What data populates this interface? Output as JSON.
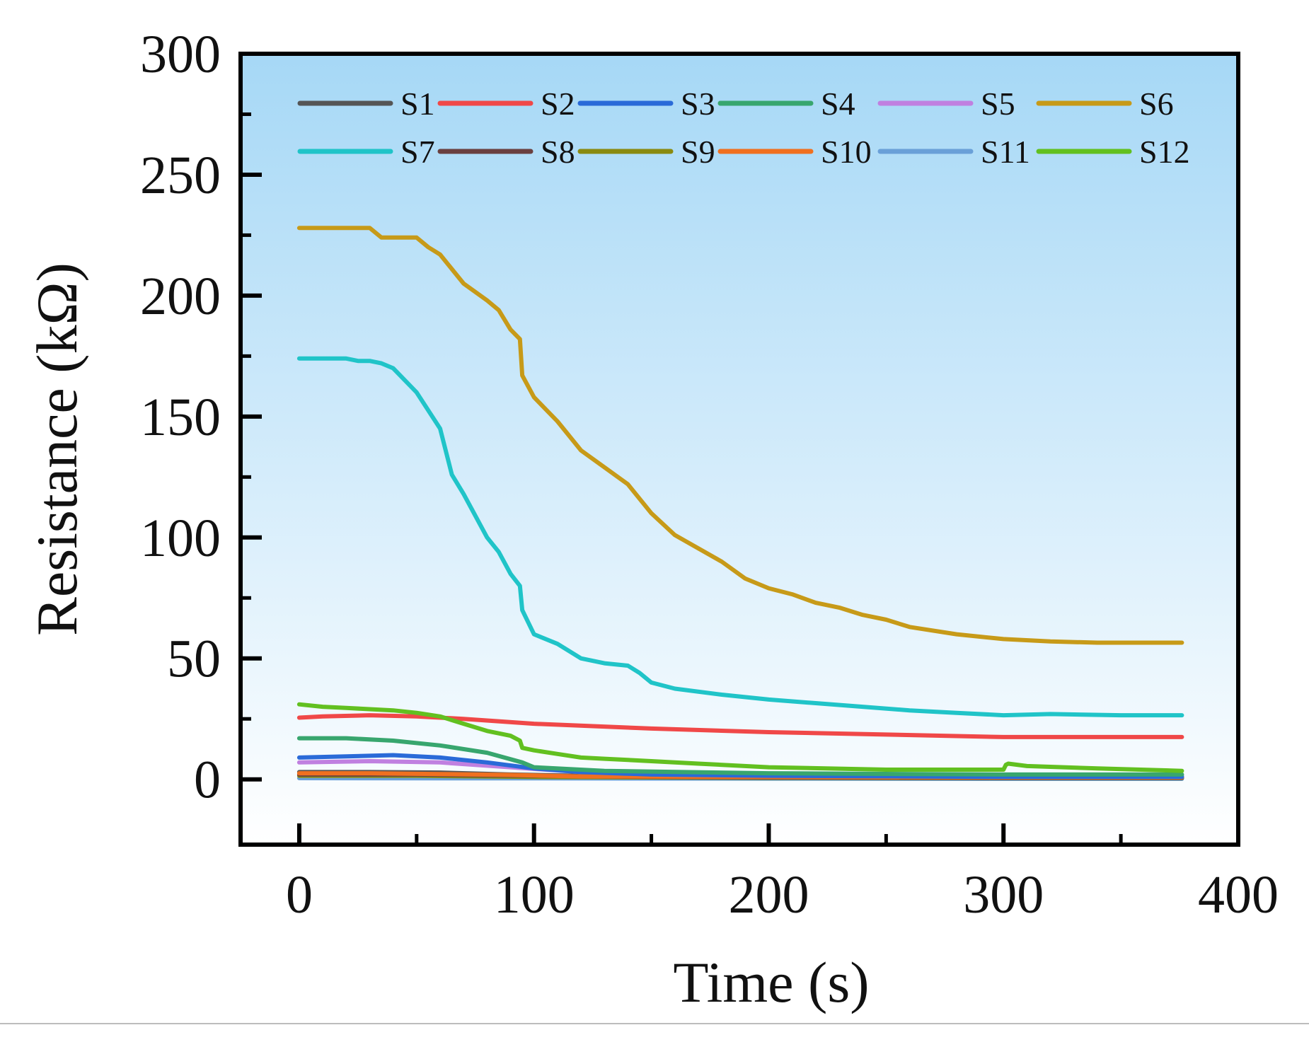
{
  "chart_data": {
    "type": "line",
    "title": "",
    "xlabel": "Time (s)",
    "ylabel": "Resistance (kΩ)",
    "xlim": [
      -25,
      400
    ],
    "ylim": [
      -27,
      300
    ],
    "xticks": [
      0,
      100,
      200,
      300,
      400
    ],
    "xtick_labels": [
      "0",
      "100",
      "200",
      "300",
      "400"
    ],
    "yticks": [
      0,
      50,
      100,
      150,
      200,
      250,
      300
    ],
    "ytick_labels": [
      "0",
      "50",
      "100",
      "150",
      "200",
      "250",
      "300"
    ],
    "background": "vertical gradient from sky blue (top) to white (bottom)",
    "legend_position": "top",
    "series": [
      {
        "name": "S1",
        "color": "#555555",
        "x": [
          0,
          30,
          60,
          90,
          120,
          200,
          300,
          376
        ],
        "y": [
          3,
          3,
          2.8,
          2,
          1.5,
          1,
          0.8,
          0.8
        ]
      },
      {
        "name": "S2",
        "color": "#f04848",
        "x": [
          0,
          10,
          30,
          50,
          70,
          100,
          150,
          200,
          250,
          300,
          376
        ],
        "y": [
          25.5,
          26,
          26.5,
          26,
          25,
          23,
          21,
          19.5,
          18.5,
          17.5,
          17.5
        ]
      },
      {
        "name": "S3",
        "color": "#2a6ad8",
        "x": [
          0,
          20,
          40,
          60,
          80,
          100,
          120,
          150,
          200,
          300,
          376
        ],
        "y": [
          9,
          9.5,
          10,
          9,
          7,
          4.5,
          3,
          2,
          1.5,
          1,
          1
        ]
      },
      {
        "name": "S4",
        "color": "#38a66e",
        "x": [
          0,
          20,
          40,
          60,
          80,
          95,
          100,
          130,
          200,
          300,
          376
        ],
        "y": [
          17,
          17,
          16,
          14,
          11,
          7,
          5,
          3.5,
          2.5,
          2,
          2
        ]
      },
      {
        "name": "S5",
        "color": "#c080e0",
        "x": [
          0,
          30,
          60,
          90,
          120,
          200,
          300,
          376
        ],
        "y": [
          7,
          7.5,
          7,
          5,
          3,
          2,
          1.5,
          1.5
        ]
      },
      {
        "name": "S6",
        "color": "#c79a18",
        "x": [
          0,
          10,
          20,
          30,
          35,
          40,
          50,
          55,
          60,
          65,
          70,
          80,
          85,
          90,
          94,
          95,
          100,
          110,
          120,
          130,
          140,
          150,
          160,
          180,
          190,
          200,
          210,
          220,
          230,
          240,
          250,
          260,
          280,
          300,
          320,
          340,
          360,
          376
        ],
        "y": [
          228,
          228,
          228,
          228,
          224,
          224,
          224,
          220,
          217,
          211,
          205,
          198,
          194,
          186,
          182,
          167,
          158,
          148,
          136,
          129,
          122,
          110,
          101,
          90,
          83,
          79,
          76.5,
          73,
          71,
          68,
          66,
          63,
          60,
          58,
          57,
          56.5,
          56.5,
          56.5
        ]
      },
      {
        "name": "S7",
        "color": "#20c4c8",
        "x": [
          0,
          10,
          20,
          25,
          30,
          35,
          40,
          50,
          60,
          65,
          70,
          80,
          85,
          90,
          94,
          95,
          100,
          110,
          120,
          130,
          140,
          145,
          150,
          160,
          180,
          200,
          220,
          240,
          260,
          280,
          300,
          320,
          350,
          376
        ],
        "y": [
          174,
          174,
          174,
          173,
          173,
          172,
          170,
          160,
          145,
          126,
          118,
          100,
          94,
          85,
          80,
          70,
          60,
          56,
          50,
          48,
          47,
          44,
          40,
          37.5,
          35,
          33,
          31.5,
          30,
          28.5,
          27.5,
          26.5,
          27,
          26.5,
          26.5
        ]
      },
      {
        "name": "S8",
        "color": "#6a4040",
        "x": [
          0,
          50,
          100,
          150,
          200,
          300,
          376
        ],
        "y": [
          2,
          2,
          1.5,
          1,
          0.8,
          0.6,
          0.6
        ]
      },
      {
        "name": "S9",
        "color": "#8a8a10",
        "x": [
          0,
          50,
          100,
          150,
          200,
          300,
          376
        ],
        "y": [
          1.5,
          1.5,
          1,
          0.8,
          0.6,
          0.5,
          0.5
        ]
      },
      {
        "name": "S10",
        "color": "#f07020",
        "x": [
          0,
          30,
          60,
          90,
          120,
          200,
          300,
          376
        ],
        "y": [
          2.5,
          2.5,
          2.2,
          1.8,
          1.2,
          1,
          0.8,
          0.8
        ]
      },
      {
        "name": "S11",
        "color": "#6aa0d8",
        "x": [
          0,
          100,
          200,
          300,
          376
        ],
        "y": [
          0.5,
          0.4,
          0.3,
          0.2,
          0.2
        ]
      },
      {
        "name": "S12",
        "color": "#62c020",
        "x": [
          0,
          10,
          20,
          30,
          40,
          50,
          60,
          70,
          80,
          90,
          94,
          95,
          100,
          110,
          120,
          130,
          150,
          170,
          200,
          250,
          300,
          301,
          302,
          310,
          340,
          376
        ],
        "y": [
          31,
          30,
          29.5,
          29,
          28.5,
          27.5,
          26,
          23,
          20,
          18,
          16,
          13,
          12,
          10.5,
          9,
          8.5,
          7.5,
          6.5,
          5,
          4,
          4,
          6,
          6.5,
          5.5,
          4.5,
          3.5
        ]
      }
    ]
  }
}
